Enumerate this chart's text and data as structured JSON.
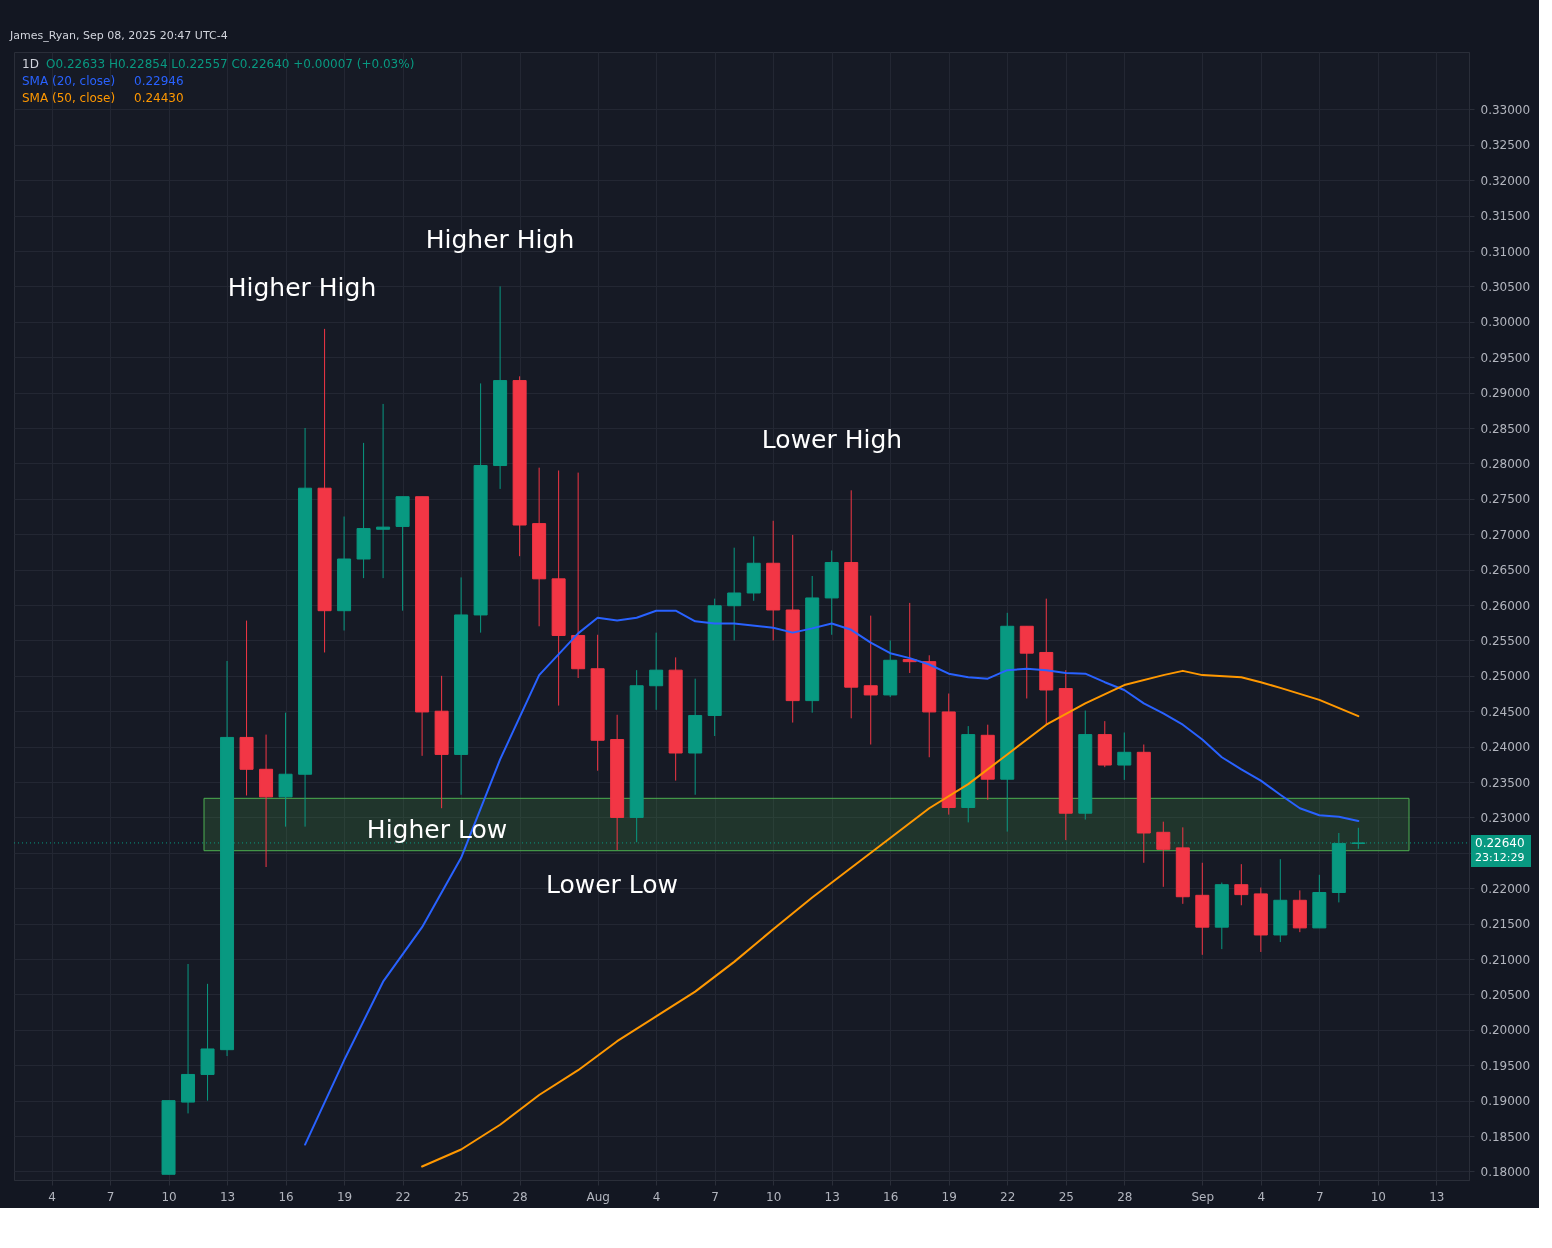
{
  "chart_data": {
    "type": "candlestick",
    "title": "1D",
    "subtitle": "O0.22633 H0.22854 L0.22557 C0.22640 +0.00007 (+0.03%)",
    "x": [
      "2025-07-10",
      "2025-07-11",
      "2025-07-12",
      "2025-07-13",
      "2025-07-14",
      "2025-07-15",
      "2025-07-16",
      "2025-07-17",
      "2025-07-18",
      "2025-07-19",
      "2025-07-20",
      "2025-07-21",
      "2025-07-22",
      "2025-07-23",
      "2025-07-24",
      "2025-07-25",
      "2025-07-26",
      "2025-07-27",
      "2025-07-28",
      "2025-07-29",
      "2025-07-30",
      "2025-07-31",
      "2025-08-01",
      "2025-08-02",
      "2025-08-03",
      "2025-08-04",
      "2025-08-05",
      "2025-08-06",
      "2025-08-07",
      "2025-08-08",
      "2025-08-09",
      "2025-08-10",
      "2025-08-11",
      "2025-08-12",
      "2025-08-13",
      "2025-08-14",
      "2025-08-15",
      "2025-08-16",
      "2025-08-17",
      "2025-08-18",
      "2025-08-19",
      "2025-08-20",
      "2025-08-21",
      "2025-08-22",
      "2025-08-23",
      "2025-08-24",
      "2025-08-25",
      "2025-08-26",
      "2025-08-27",
      "2025-08-28",
      "2025-08-29",
      "2025-08-30",
      "2025-08-31",
      "2025-09-01",
      "2025-09-02",
      "2025-09-03",
      "2025-09-04",
      "2025-09-05",
      "2025-09-06",
      "2025-09-07",
      "2025-09-08",
      "2025-09-09"
    ],
    "ohlc": [
      [
        0.1796,
        0.19,
        0.1796,
        0.19
      ],
      [
        0.1898,
        0.2093,
        0.1882,
        0.1937
      ],
      [
        0.1937,
        0.2065,
        0.19,
        0.1973
      ],
      [
        0.1972,
        0.2521,
        0.1963,
        0.2413
      ],
      [
        0.2413,
        0.2578,
        0.2331,
        0.2368
      ],
      [
        0.2368,
        0.2417,
        0.223,
        0.2329
      ],
      [
        0.2329,
        0.2448,
        0.2287,
        0.2361
      ],
      [
        0.2361,
        0.285,
        0.2287,
        0.2765
      ],
      [
        0.2765,
        0.299,
        0.2533,
        0.2592
      ],
      [
        0.2592,
        0.2725,
        0.2564,
        0.2665
      ],
      [
        0.2665,
        0.2829,
        0.2638,
        0.2708
      ],
      [
        0.2707,
        0.2884,
        0.2638,
        0.271
      ],
      [
        0.2711,
        0.2753,
        0.2592,
        0.2753
      ],
      [
        0.2753,
        0.2753,
        0.2387,
        0.2449
      ],
      [
        0.245,
        0.25,
        0.2313,
        0.2389
      ],
      [
        0.2389,
        0.2639,
        0.2332,
        0.2586
      ],
      [
        0.2586,
        0.2913,
        0.2561,
        0.2797
      ],
      [
        0.2797,
        0.305,
        0.2764,
        0.2917
      ],
      [
        0.2917,
        0.2923,
        0.2669,
        0.2713
      ],
      [
        0.2715,
        0.2794,
        0.257,
        0.2637
      ],
      [
        0.2637,
        0.279,
        0.2458,
        0.2557
      ],
      [
        0.2557,
        0.2787,
        0.2497,
        0.251
      ],
      [
        0.251,
        0.2558,
        0.2366,
        0.2409
      ],
      [
        0.241,
        0.2445,
        0.2254,
        0.23
      ],
      [
        0.23,
        0.2508,
        0.2265,
        0.2486
      ],
      [
        0.2486,
        0.2561,
        0.2452,
        0.2508
      ],
      [
        0.2508,
        0.2526,
        0.2352,
        0.2391
      ],
      [
        0.2391,
        0.2496,
        0.2332,
        0.2444
      ],
      [
        0.2444,
        0.2609,
        0.2415,
        0.2599
      ],
      [
        0.2599,
        0.2681,
        0.255,
        0.2617
      ],
      [
        0.2617,
        0.2697,
        0.2606,
        0.2659
      ],
      [
        0.2659,
        0.2719,
        0.255,
        0.2593
      ],
      [
        0.2593,
        0.2699,
        0.2434,
        0.2465
      ],
      [
        0.2465,
        0.2641,
        0.2448,
        0.261
      ],
      [
        0.261,
        0.2677,
        0.2558,
        0.266
      ],
      [
        0.266,
        0.2762,
        0.244,
        0.2484
      ],
      [
        0.2486,
        0.2585,
        0.2403,
        0.2473
      ],
      [
        0.2473,
        0.255,
        0.247,
        0.2522
      ],
      [
        0.2523,
        0.2603,
        0.2504,
        0.252
      ],
      [
        0.252,
        0.2529,
        0.2385,
        0.2449
      ],
      [
        0.2449,
        0.2475,
        0.2304,
        0.2314
      ],
      [
        0.2314,
        0.2429,
        0.2293,
        0.2417
      ],
      [
        0.2416,
        0.2431,
        0.2325,
        0.2354
      ],
      [
        0.2354,
        0.2589,
        0.228,
        0.257
      ],
      [
        0.257,
        0.257,
        0.2468,
        0.2532
      ],
      [
        0.2533,
        0.2609,
        0.2431,
        0.248
      ],
      [
        0.2482,
        0.2508,
        0.2268,
        0.2306
      ],
      [
        0.2306,
        0.2451,
        0.2297,
        0.2417
      ],
      [
        0.2417,
        0.2436,
        0.2371,
        0.2374
      ],
      [
        0.2374,
        0.242,
        0.2353,
        0.2392
      ],
      [
        0.2392,
        0.2403,
        0.2236,
        0.2278
      ],
      [
        0.2279,
        0.2294,
        0.2202,
        0.2255
      ],
      [
        0.2257,
        0.2286,
        0.2178,
        0.2188
      ],
      [
        0.219,
        0.2236,
        0.2106,
        0.2145
      ],
      [
        0.2145,
        0.2208,
        0.2114,
        0.2205
      ],
      [
        0.2205,
        0.2234,
        0.2176,
        0.2191
      ],
      [
        0.2192,
        0.2201,
        0.211,
        0.2134
      ],
      [
        0.2134,
        0.2241,
        0.2124,
        0.2183
      ],
      [
        0.2183,
        0.2197,
        0.2138,
        0.2144
      ],
      [
        0.2144,
        0.2219,
        0.2144,
        0.2194
      ],
      [
        0.2194,
        0.2278,
        0.218,
        0.22633
      ],
      [
        0.22633,
        0.22854,
        0.22557,
        0.2264
      ]
    ],
    "colors": [
      "#089981",
      "#089981",
      "#089981",
      "#089981",
      "#f23645",
      "#f23645",
      "#089981",
      "#089981",
      "#f23645",
      "#089981",
      "#089981",
      "#089981",
      "#089981",
      "#f23645",
      "#f23645",
      "#089981",
      "#089981",
      "#089981",
      "#f23645",
      "#f23645",
      "#f23645",
      "#f23645",
      "#f23645",
      "#f23645",
      "#089981",
      "#089981",
      "#f23645",
      "#089981",
      "#089981",
      "#089981",
      "#089981",
      "#f23645",
      "#f23645",
      "#089981",
      "#089981",
      "#f23645",
      "#f23645",
      "#089981",
      "#f23645",
      "#f23645",
      "#f23645",
      "#089981",
      "#f23645",
      "#089981",
      "#f23645",
      "#f23645",
      "#f23645",
      "#089981",
      "#f23645",
      "#089981",
      "#f23645",
      "#f23645",
      "#f23645",
      "#f23645",
      "#089981",
      "#f23645",
      "#f23645",
      "#089981",
      "#f23645",
      "#089981",
      "#089981",
      "#089981"
    ],
    "series": [
      {
        "name": "SMA (20, close)",
        "type": "line",
        "color": "#2962ff",
        "x": [
          "2025-07-17",
          "2025-07-19",
          "2025-07-21",
          "2025-07-23",
          "2025-07-25",
          "2025-07-27",
          "2025-07-29",
          "2025-07-31",
          "2025-08-01",
          "2025-08-02",
          "2025-08-03",
          "2025-08-04",
          "2025-08-05",
          "2025-08-06",
          "2025-08-07",
          "2025-08-08",
          "2025-08-10",
          "2025-08-11",
          "2025-08-12",
          "2025-08-13",
          "2025-08-14",
          "2025-08-15",
          "2025-08-16",
          "2025-08-17",
          "2025-08-18",
          "2025-08-19",
          "2025-08-20",
          "2025-08-21",
          "2025-08-22",
          "2025-08-23",
          "2025-08-24",
          "2025-08-25",
          "2025-08-26",
          "2025-08-27",
          "2025-08-28",
          "2025-08-29",
          "2025-08-30",
          "2025-08-31",
          "2025-09-01",
          "2025-09-02",
          "2025-09-03",
          "2025-09-04",
          "2025-09-05",
          "2025-09-06",
          "2025-09-07",
          "2025-09-08",
          "2025-09-09"
        ],
        "values": [
          0.1838,
          0.1957,
          0.2068,
          0.2145,
          0.2243,
          0.2382,
          0.2501,
          0.256,
          0.2582,
          0.2578,
          0.2582,
          0.2592,
          0.2592,
          0.2577,
          0.2574,
          0.2574,
          0.2568,
          0.2561,
          0.2567,
          0.2574,
          0.2565,
          0.2547,
          0.2532,
          0.2525,
          0.2516,
          0.2503,
          0.2498,
          0.2496,
          0.2508,
          0.251,
          0.2508,
          0.2504,
          0.2503,
          0.2491,
          0.248,
          0.2461,
          0.2447,
          0.2431,
          0.241,
          0.2385,
          0.2368,
          0.2352,
          0.2332,
          0.2313,
          0.2303,
          0.2301,
          0.2295
        ]
      },
      {
        "name": "SMA (50, close)",
        "type": "line",
        "color": "#ff9800",
        "x": [
          "2025-07-23",
          "2025-07-25",
          "2025-07-27",
          "2025-07-29",
          "2025-07-31",
          "2025-08-02",
          "2025-08-04",
          "2025-08-06",
          "2025-08-08",
          "2025-08-10",
          "2025-08-12",
          "2025-08-14",
          "2025-08-16",
          "2025-08-18",
          "2025-08-20",
          "2025-08-22",
          "2025-08-24",
          "2025-08-26",
          "2025-08-28",
          "2025-08-30",
          "2025-08-31",
          "2025-09-01",
          "2025-09-03",
          "2025-09-04",
          "2025-09-05",
          "2025-09-07",
          "2025-09-09"
        ],
        "values": [
          0.1807,
          0.1831,
          0.1866,
          0.1908,
          0.1943,
          0.1984,
          0.2019,
          0.2054,
          0.2096,
          0.2142,
          0.2187,
          0.2229,
          0.2271,
          0.2313,
          0.2347,
          0.2389,
          0.2431,
          0.2461,
          0.2487,
          0.2501,
          0.2507,
          0.2501,
          0.2498,
          0.2491,
          0.2483,
          0.2466,
          0.2443
        ]
      }
    ],
    "legend": "top left",
    "xlim": [
      "2025-07-02T08:00",
      "2025-09-14T10:00"
    ],
    "xticks": [
      {
        "value": "2025-07-04",
        "label": "4"
      },
      {
        "value": "2025-07-07",
        "label": "7"
      },
      {
        "value": "2025-07-10",
        "label": "10"
      },
      {
        "value": "2025-07-13",
        "label": "13"
      },
      {
        "value": "2025-07-16",
        "label": "16"
      },
      {
        "value": "2025-07-19",
        "label": "19"
      },
      {
        "value": "2025-07-22",
        "label": "22"
      },
      {
        "value": "2025-07-25",
        "label": "25"
      },
      {
        "value": "2025-07-28",
        "label": "28"
      },
      {
        "value": "2025-08-01",
        "label": "Aug"
      },
      {
        "value": "2025-08-04",
        "label": "4"
      },
      {
        "value": "2025-08-07",
        "label": "7"
      },
      {
        "value": "2025-08-10",
        "label": "10"
      },
      {
        "value": "2025-08-13",
        "label": "13"
      },
      {
        "value": "2025-08-16",
        "label": "16"
      },
      {
        "value": "2025-08-19",
        "label": "19"
      },
      {
        "value": "2025-08-22",
        "label": "22"
      },
      {
        "value": "2025-08-25",
        "label": "25"
      },
      {
        "value": "2025-08-28",
        "label": "28"
      },
      {
        "value": "2025-09-01",
        "label": "Sep"
      },
      {
        "value": "2025-09-04",
        "label": "4"
      },
      {
        "value": "2025-09-07",
        "label": "7"
      },
      {
        "value": "2025-09-10",
        "label": "10"
      },
      {
        "value": "2025-09-13",
        "label": "13"
      }
    ],
    "ylim": [
      0.1795,
      0.3374
    ],
    "yticks": [
      {
        "value": 0.18,
        "label": "0.18000"
      },
      {
        "value": 0.185,
        "label": "0.18500"
      },
      {
        "value": 0.19,
        "label": "0.19000"
      },
      {
        "value": 0.195,
        "label": "0.19500"
      },
      {
        "value": 0.2,
        "label": "0.20000"
      },
      {
        "value": 0.205,
        "label": "0.20500"
      },
      {
        "value": 0.21,
        "label": "0.21000"
      },
      {
        "value": 0.215,
        "label": "0.21500"
      },
      {
        "value": 0.22,
        "label": "0.22000"
      },
      {
        "value": 0.225,
        "label": null
      },
      {
        "value": 0.23,
        "label": "0.23000"
      },
      {
        "value": 0.235,
        "label": "0.23500"
      },
      {
        "value": 0.24,
        "label": "0.24000"
      },
      {
        "value": 0.245,
        "label": "0.24500"
      },
      {
        "value": 0.25,
        "label": "0.25000"
      },
      {
        "value": 0.255,
        "label": "0.25500"
      },
      {
        "value": 0.26,
        "label": "0.26000"
      },
      {
        "value": 0.265,
        "label": "0.26500"
      },
      {
        "value": 0.27,
        "label": "0.27000"
      },
      {
        "value": 0.275,
        "label": "0.27500"
      },
      {
        "value": 0.28,
        "label": "0.28000"
      },
      {
        "value": 0.285,
        "label": "0.28500"
      },
      {
        "value": 0.29,
        "label": "0.29000"
      },
      {
        "value": 0.295,
        "label": "0.29500"
      },
      {
        "value": 0.3,
        "label": "0.30000"
      },
      {
        "value": 0.305,
        "label": "0.30500"
      },
      {
        "value": 0.31,
        "label": "0.31000"
      },
      {
        "value": 0.315,
        "label": "0.31500"
      },
      {
        "value": 0.32,
        "label": "0.32000"
      },
      {
        "value": 0.325,
        "label": "0.32500"
      },
      {
        "value": 0.33,
        "label": "0.33000"
      }
    ],
    "grid": true,
    "bands": [
      {
        "axis": "y",
        "from": 0.2253,
        "to": 0.2327,
        "color": "#4caf50"
      }
    ],
    "ref_lines": [
      {
        "axis": "y",
        "value": 0.2264,
        "label": "0.22640",
        "color": "#089981",
        "line_style": "dotted"
      }
    ],
    "annotations": [
      "James_Ryan, Sep 08, 2025 20:47 UTC-4",
      "23:12:29",
      "0.22946",
      "0.24430",
      "Higher High",
      "Higher High",
      "Lower High",
      "Higher Low",
      "Lower Low"
    ]
  }
}
